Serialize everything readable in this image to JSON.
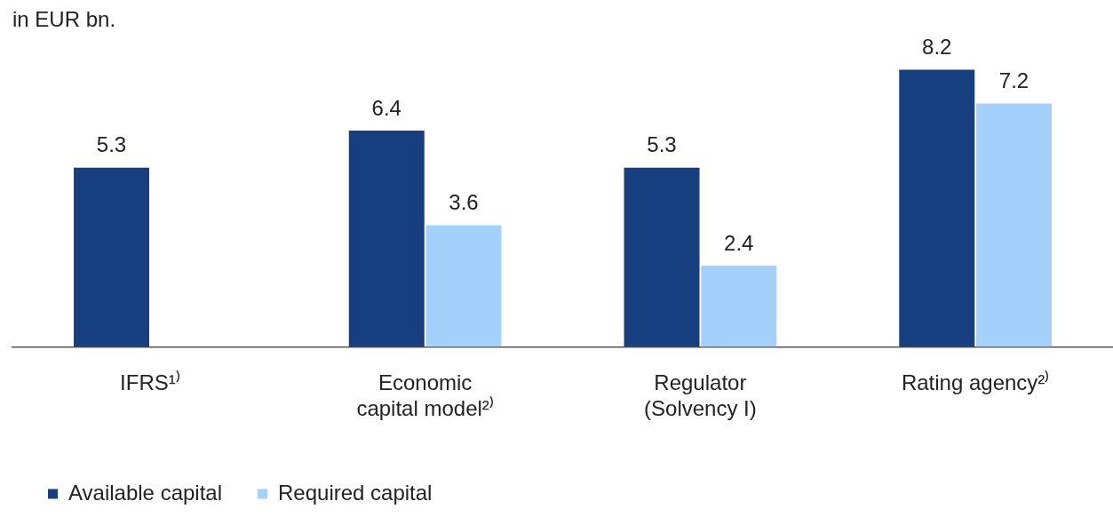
{
  "chart_data": {
    "type": "bar",
    "ylabel": "in EUR bn.",
    "categories": [
      "IFRS¹⁾",
      "Economic capital model²⁾",
      "Regulator (Solvency I)",
      "Rating agency²⁾"
    ],
    "series": [
      {
        "name": "Available capital",
        "color": "#173f7f",
        "values": [
          5.3,
          6.4,
          5.3,
          8.2
        ]
      },
      {
        "name": "Required capital",
        "color": "#a3d1fb",
        "values": [
          null,
          3.6,
          2.4,
          7.2
        ]
      }
    ],
    "data_labels": true,
    "legend": "bottom left",
    "grid": false
  }
}
